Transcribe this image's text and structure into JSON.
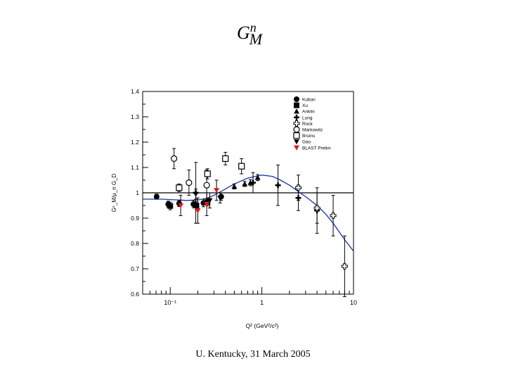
{
  "slide": {
    "title_main": "G",
    "title_sup": "n",
    "title_sub": "M",
    "footer": "U. Kentucky, 31 March 2005"
  },
  "chart_data": {
    "type": "scatter",
    "title": "",
    "xlabel": "Q² (GeV²/c²)",
    "ylabel": "Gⁿ_M/μ_n G_D",
    "xscale": "log",
    "xlim": [
      0.05,
      10
    ],
    "ylim": [
      0.6,
      1.4
    ],
    "yticks": [
      0.6,
      0.7,
      0.8,
      0.9,
      1,
      1.1,
      1.2,
      1.3,
      1.4
    ],
    "ytick_labels": [
      "0.6",
      "0.7",
      "0.8",
      "0.9",
      "1",
      "1.1",
      "1.2",
      "1.3",
      "1.4"
    ],
    "xticks": [
      0.1,
      1,
      10
    ],
    "xtick_labels": [
      "10⁻¹",
      "1",
      "10"
    ],
    "reference_line": 1.0,
    "legend_position": "top-right",
    "series": [
      {
        "name": "Kubon",
        "marker": "filled-circle",
        "color": "#000000",
        "points": [
          [
            0.071,
            0.985,
            0.01
          ],
          [
            0.095,
            0.955,
            0.012
          ],
          [
            0.125,
            0.958,
            0.012
          ],
          [
            0.179,
            0.955,
            0.014
          ],
          [
            0.23,
            0.96,
            0.015
          ],
          [
            0.36,
            0.985,
            0.015
          ]
        ]
      },
      {
        "name": "Xu",
        "marker": "filled-square",
        "color": "#000000",
        "points": [
          [
            0.1,
            0.948,
            0.015
          ],
          [
            0.193,
            0.95,
            0.015
          ],
          [
            0.255,
            0.963,
            0.015
          ]
        ]
      },
      {
        "name": "Anklin",
        "marker": "filled-triangle",
        "color": "#000000",
        "points": [
          [
            0.5,
            1.025,
            0.01
          ],
          [
            0.65,
            1.035,
            0.01
          ],
          [
            0.75,
            1.04,
            0.012
          ],
          [
            0.9,
            1.06,
            0.012
          ]
        ]
      },
      {
        "name": "Lung",
        "marker": "cross",
        "color": "#000000",
        "points": [
          [
            0.19,
            1.0,
            0.12
          ],
          [
            0.8,
            1.04,
            0.04
          ],
          [
            1.5,
            1.03,
            0.08
          ],
          [
            2.5,
            0.98,
            0.05
          ],
          [
            4.0,
            0.93,
            0.09
          ]
        ]
      },
      {
        "name": "Rock",
        "marker": "open-cross",
        "color": "#000000",
        "points": [
          [
            2.5,
            1.02,
            0.05
          ],
          [
            4.0,
            0.94,
            0.06
          ],
          [
            6.0,
            0.91,
            0.08
          ],
          [
            8.0,
            0.71,
            0.12
          ]
        ]
      },
      {
        "name": "Markowitz",
        "marker": "open-circle",
        "color": "#000000",
        "points": [
          [
            0.11,
            1.135,
            0.04
          ],
          [
            0.16,
            1.04,
            0.05
          ],
          [
            0.25,
            1.03,
            0.06
          ]
        ]
      },
      {
        "name": "Bruins",
        "marker": "open-square",
        "color": "#000000",
        "points": [
          [
            0.125,
            1.02,
            0.015
          ],
          [
            0.255,
            1.075,
            0.02
          ],
          [
            0.4,
            1.135,
            0.025
          ],
          [
            0.6,
            1.105,
            0.03
          ]
        ]
      },
      {
        "name": "Gao",
        "marker": "filled-triangle-down",
        "color": "#000000",
        "points": [
          [
            0.19,
            0.995,
            0.02
          ],
          [
            0.27,
            0.97,
            0.03
          ],
          [
            0.35,
            0.98,
            0.02
          ]
        ]
      },
      {
        "name": "BLAST Prelim",
        "marker": "filled-triangle-down",
        "color": "#e01818",
        "points": [
          [
            0.13,
            0.95,
            0.04
          ],
          [
            0.2,
            0.93,
            0.05
          ],
          [
            0.25,
            0.955,
            0.045
          ],
          [
            0.32,
            1.01,
            0.04
          ]
        ]
      }
    ],
    "fit_curve": {
      "name": "fit",
      "color": "#1a33a8",
      "points": [
        [
          0.05,
          0.975
        ],
        [
          0.08,
          0.975
        ],
        [
          0.12,
          0.972
        ],
        [
          0.15,
          0.97
        ],
        [
          0.2,
          0.972
        ],
        [
          0.25,
          0.978
        ],
        [
          0.3,
          0.99
        ],
        [
          0.4,
          1.015
        ],
        [
          0.5,
          1.035
        ],
        [
          0.7,
          1.058
        ],
        [
          1.0,
          1.07
        ],
        [
          1.3,
          1.065
        ],
        [
          1.6,
          1.05
        ],
        [
          2.0,
          1.03
        ],
        [
          2.5,
          1.005
        ],
        [
          3.0,
          0.985
        ],
        [
          4.0,
          0.95
        ],
        [
          5.0,
          0.915
        ],
        [
          6.0,
          0.88
        ],
        [
          7.0,
          0.845
        ],
        [
          8.0,
          0.815
        ],
        [
          10.0,
          0.77
        ]
      ]
    }
  }
}
